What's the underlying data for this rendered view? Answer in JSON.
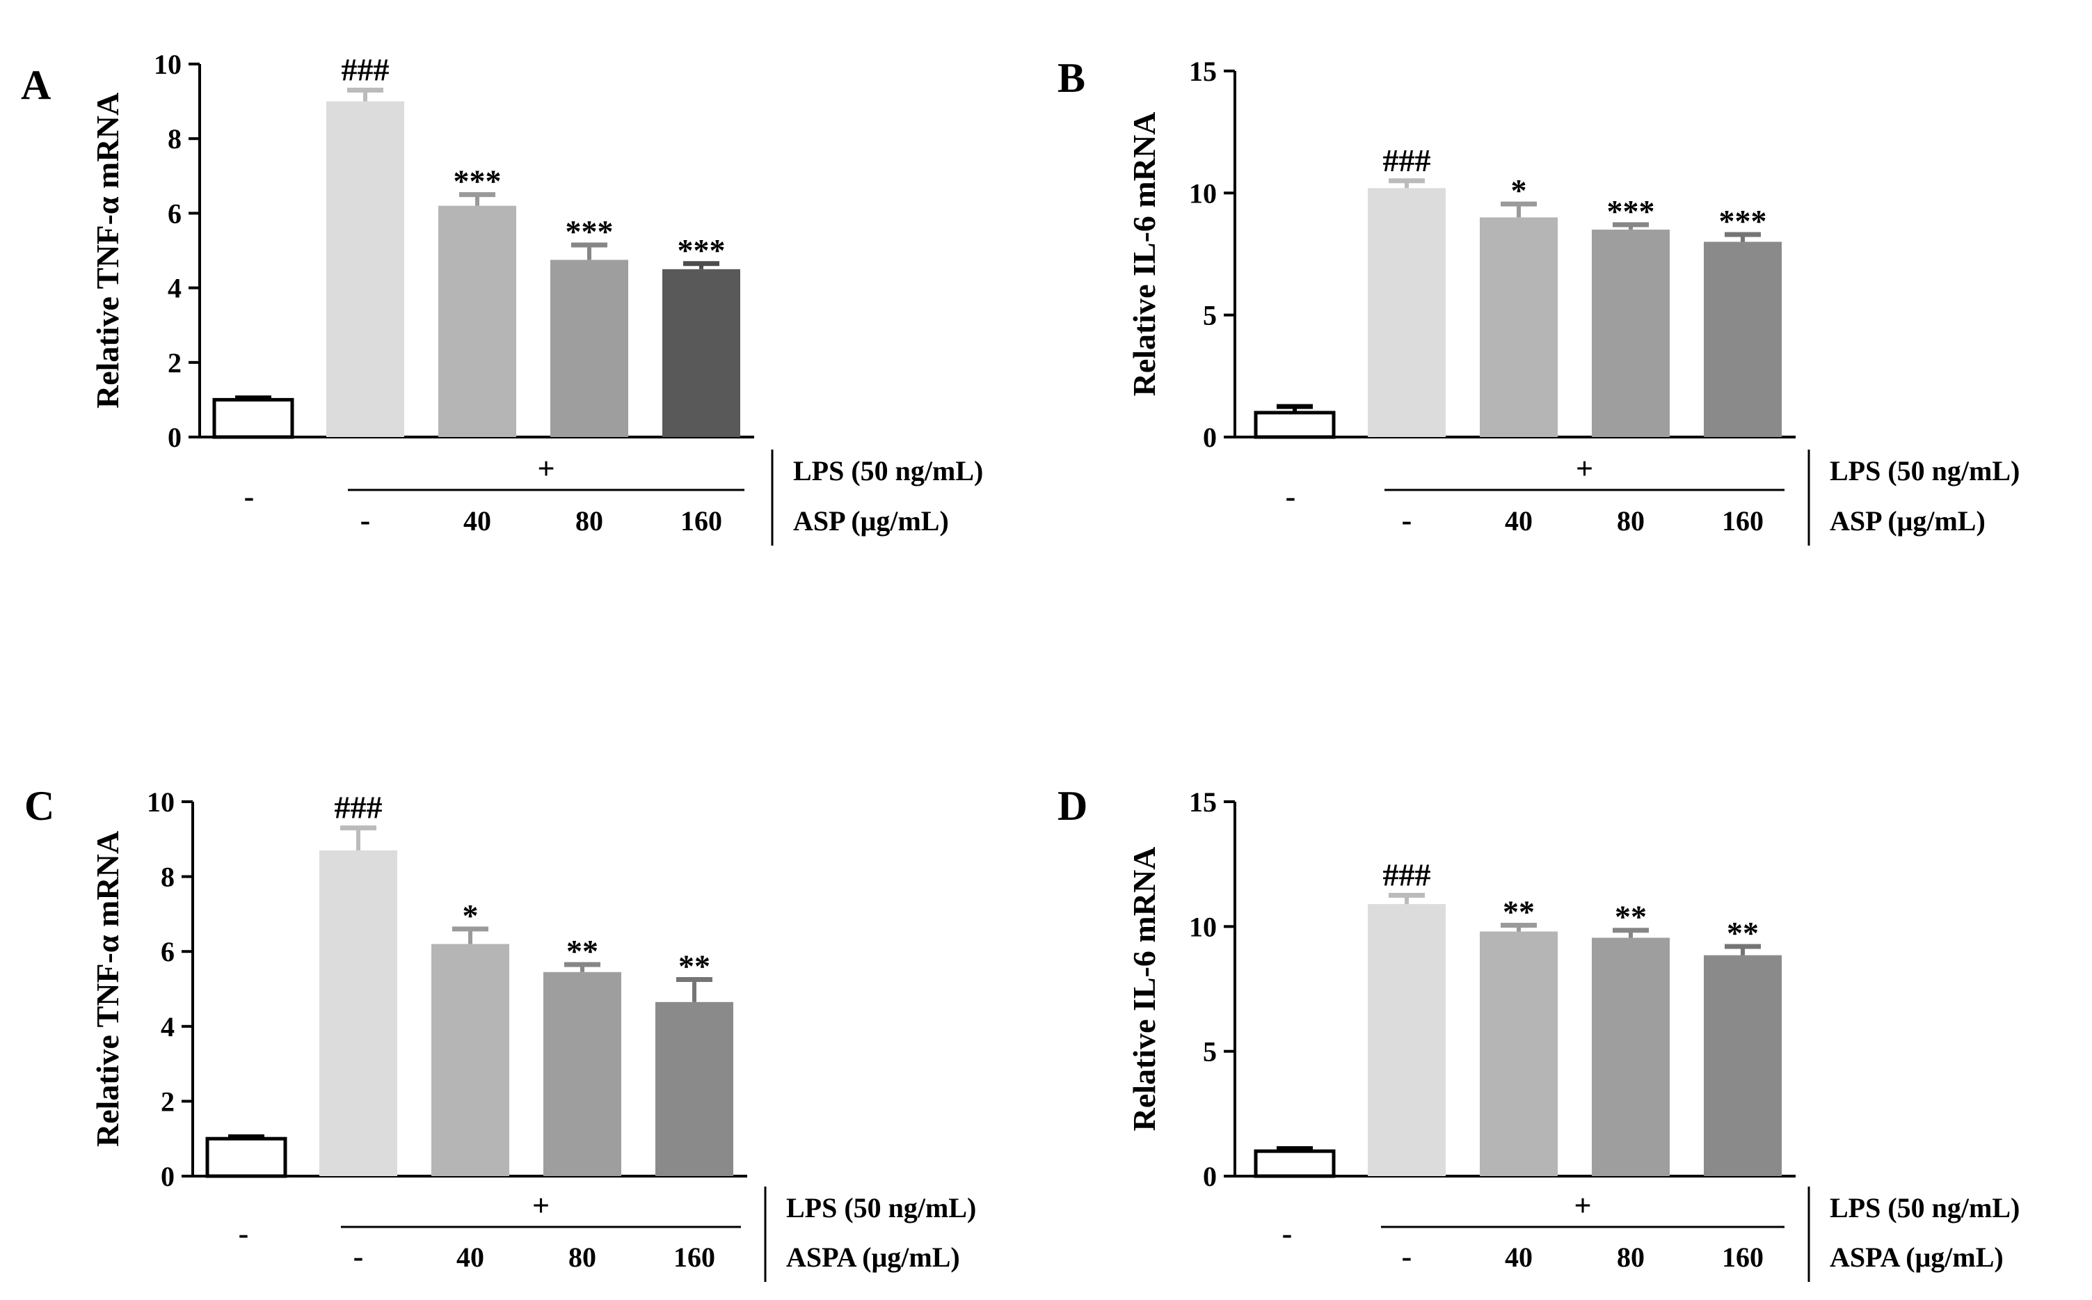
{
  "colors": {
    "axis": "#000000",
    "bar_fills": [
      "#ffffff",
      "#dcdcdc",
      "#b5b5b5",
      "#9e9e9e",
      "#595959"
    ],
    "bar_fills_light": [
      "#ffffff",
      "#dcdcdc",
      "#b5b5b5",
      "#9e9e9e",
      "#8a8a8a"
    ]
  },
  "chart_data": [
    {
      "type": "bar",
      "panel": "A",
      "ylabel": "Relative TNF-α  mRNA",
      "ylim": [
        0,
        10
      ],
      "yticks": [
        0,
        2,
        4,
        6,
        8,
        10
      ],
      "categories": [
        "control",
        "LPS",
        "LPS+ASP 40",
        "LPS+ASP 80",
        "LPS+ASP 160"
      ],
      "values": [
        1.0,
        9.0,
        6.2,
        4.75,
        4.5
      ],
      "errors": [
        0.05,
        0.3,
        0.3,
        0.4,
        0.15
      ],
      "significance": [
        "",
        "###",
        "***",
        "***",
        "***"
      ],
      "control_label": "-",
      "lps_plus": "+",
      "dose_labels": [
        "-",
        "40",
        "80",
        "160"
      ],
      "row1_label": "LPS (50 ng/mL)",
      "row2_label": "ASP (μg/mL)"
    },
    {
      "type": "bar",
      "panel": "B",
      "ylabel": "Relative IL-6 mRNA",
      "ylim": [
        0,
        15
      ],
      "yticks": [
        0,
        5,
        10,
        15
      ],
      "categories": [
        "control",
        "LPS",
        "LPS+ASP 40",
        "LPS+ASP 80",
        "LPS+ASP 160"
      ],
      "values": [
        1.0,
        10.2,
        9.0,
        8.5,
        8.0
      ],
      "errors": [
        0.25,
        0.3,
        0.55,
        0.2,
        0.3
      ],
      "significance": [
        "",
        "###",
        "*",
        "***",
        "***"
      ],
      "control_label": "-",
      "lps_plus": "+",
      "dose_labels": [
        "-",
        "40",
        "80",
        "160"
      ],
      "row1_label": "LPS (50 ng/mL)",
      "row2_label": "ASP (μg/mL)"
    },
    {
      "type": "bar",
      "panel": "C",
      "ylabel": "Relative TNF-α  mRNA",
      "ylim": [
        0,
        10
      ],
      "yticks": [
        0,
        2,
        4,
        6,
        8,
        10
      ],
      "categories": [
        "control",
        "LPS",
        "LPS+ASPA 40",
        "LPS+ASPA 80",
        "LPS+ASPA 160"
      ],
      "values": [
        1.0,
        8.7,
        6.2,
        5.45,
        4.65
      ],
      "errors": [
        0.05,
        0.6,
        0.4,
        0.2,
        0.6
      ],
      "significance": [
        "",
        "###",
        "*",
        "**",
        "**"
      ],
      "control_label": "-",
      "lps_plus": "+",
      "dose_labels": [
        "-",
        "40",
        "80",
        "160"
      ],
      "row1_label": "LPS (50 ng/mL)",
      "row2_label": "ASPA (μg/mL)"
    },
    {
      "type": "bar",
      "panel": "D",
      "ylabel": "Relative IL-6 mRNA",
      "ylim": [
        0,
        15
      ],
      "yticks": [
        0,
        5,
        10,
        15
      ],
      "categories": [
        "control",
        "LPS",
        "LPS+ASPA 40",
        "LPS+ASPA 80",
        "LPS+ASPA 160"
      ],
      "values": [
        1.0,
        10.9,
        9.8,
        9.55,
        8.85
      ],
      "errors": [
        0.1,
        0.35,
        0.25,
        0.3,
        0.35
      ],
      "significance": [
        "",
        "###",
        "**",
        "**",
        "**"
      ],
      "control_label": "-",
      "lps_plus": "+",
      "dose_labels": [
        "-",
        "40",
        "80",
        "160"
      ],
      "row1_label": "LPS (50 ng/mL)",
      "row2_label": "ASPA (μg/mL)"
    }
  ]
}
